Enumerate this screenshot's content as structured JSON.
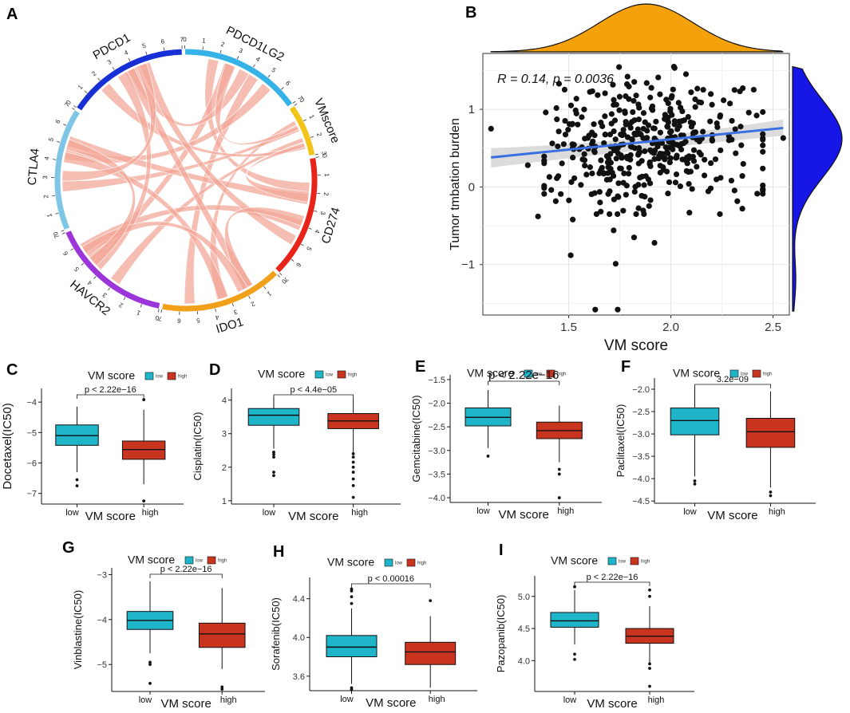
{
  "colors": {
    "low": "#1fb5c9",
    "high": "#c9341f",
    "points": "#111111",
    "fit": "#3a6fe0",
    "ci": "#d6d6d6",
    "density_top": "#f5a10b",
    "density_right": "#1616e6",
    "chord": "#f3a596",
    "grid": "#e4e4e4"
  },
  "panel_labels": {
    "A": "A",
    "B": "B",
    "C": "C",
    "D": "D",
    "E": "E",
    "F": "F",
    "G": "G",
    "H": "H",
    "I": "I"
  },
  "chart_data": [
    {
      "panel": "A",
      "type": "chord",
      "sectors": [
        {
          "name": "PDCD1LG2",
          "color": "#36b3e6",
          "max": 7
        },
        {
          "name": "VMscore",
          "color": "#f0c419",
          "max": 3
        },
        {
          "name": "CD274",
          "color": "#e8241a",
          "max": 7
        },
        {
          "name": "IDO1",
          "color": "#f0a019",
          "max": 7
        },
        {
          "name": "HAVCR2",
          "color": "#9b35d9",
          "max": 7
        },
        {
          "name": "CTLA4",
          "color": "#7fc6e6",
          "max": 7
        },
        {
          "name": "PDCD1",
          "color": "#1630d6",
          "max": 7
        }
      ],
      "links": [
        [
          0,
          2
        ],
        [
          0,
          3
        ],
        [
          0,
          4
        ],
        [
          0,
          5
        ],
        [
          0,
          6
        ],
        [
          1,
          3
        ],
        [
          1,
          4
        ],
        [
          1,
          5
        ],
        [
          1,
          6
        ],
        [
          2,
          4
        ],
        [
          2,
          5
        ],
        [
          2,
          6
        ],
        [
          3,
          5
        ],
        [
          3,
          6
        ],
        [
          4,
          6
        ],
        [
          0,
          1
        ],
        [
          1,
          2
        ],
        [
          2,
          3
        ],
        [
          3,
          4
        ],
        [
          4,
          5
        ],
        [
          5,
          6
        ]
      ]
    },
    {
      "panel": "B",
      "type": "scatter",
      "xlabel": "VM score",
      "ylabel": "Tumor tmbation burden",
      "annotation": "R = 0.14, p = 0.0036",
      "xlim": [
        1.08,
        2.58
      ],
      "ylim": [
        -1.65,
        1.72
      ],
      "xticks": [
        "1.5",
        "2.0",
        "2.5"
      ],
      "xtick_values": [
        1.5,
        2.0,
        2.5
      ],
      "yticks": [
        "1",
        "0",
        "−1"
      ],
      "ytick_values": [
        1,
        0,
        -1
      ],
      "fit": {
        "x": [
          1.12,
          2.55
        ],
        "y": [
          0.38,
          0.76
        ],
        "ci_low_end": [
          0.25,
          0.66
        ],
        "ci_high_end": [
          0.5,
          0.87
        ],
        "ci_mid": [
          0.5,
          0.55
        ]
      },
      "n_points": 400,
      "x_mean": 1.88,
      "x_sd": 0.25,
      "y_mean": 0.55,
      "y_sd": 0.42,
      "outliers": [
        [
          1.63,
          -1.58
        ],
        [
          1.74,
          -1.58
        ],
        [
          1.73,
          -0.99
        ],
        [
          1.51,
          -0.88
        ],
        [
          1.92,
          -0.72
        ],
        [
          1.82,
          -0.65
        ],
        [
          1.72,
          -0.56
        ],
        [
          1.35,
          -0.38
        ],
        [
          1.52,
          -0.42
        ],
        [
          2.35,
          -0.28
        ],
        [
          1.12,
          0.75
        ],
        [
          2.55,
          0.63
        ],
        [
          2.45,
          0.02
        ],
        [
          2.42,
          0.92
        ],
        [
          1.3,
          0.28
        ]
      ]
    },
    {
      "panel": "C",
      "type": "boxplot",
      "legend_title": "VM score",
      "legend_low": "low",
      "legend_high": "high",
      "ylabel": "Docetaxel(IC50)",
      "xlabel": "VM score",
      "categories": [
        "low",
        "high"
      ],
      "pvalue": "p < 2.22e−16",
      "ylim": [
        -7.35,
        -3.55
      ],
      "yticks": [
        -4,
        -5,
        -6,
        -7
      ],
      "ytick_labels": [
        "−4",
        "−5",
        "−6",
        "−7"
      ],
      "boxes": [
        {
          "whislo": -6.3,
          "q1": -5.42,
          "med": -5.1,
          "q3": -4.75,
          "whishi": -4.15,
          "outliers": [
            -6.55,
            -6.75
          ]
        },
        {
          "whislo": -6.7,
          "q1": -5.88,
          "med": -5.56,
          "q3": -5.28,
          "whishi": -4.25,
          "outliers": [
            -3.92,
            -7.25
          ]
        }
      ]
    },
    {
      "panel": "D",
      "type": "boxplot",
      "legend_title": "VM score",
      "legend_low": "low",
      "legend_high": "high",
      "ylabel": "Cisplatin(IC50)",
      "xlabel": "VM score",
      "categories": [
        "low",
        "high"
      ],
      "pvalue": "p < 4.4e−05",
      "ylim": [
        0.9,
        4.35
      ],
      "yticks": [
        4,
        3,
        2,
        1
      ],
      "ytick_labels": [
        "4",
        "3",
        "2",
        "1"
      ],
      "boxes": [
        {
          "whislo": 2.55,
          "q1": 3.25,
          "med": 3.55,
          "q3": 3.75,
          "whishi": 4.1,
          "outliers": [
            2.45,
            2.38,
            2.3,
            1.85,
            1.75
          ]
        },
        {
          "whislo": 2.45,
          "q1": 3.15,
          "med": 3.38,
          "q3": 3.6,
          "whishi": 4.05,
          "outliers": [
            2.4,
            2.3,
            2.15,
            2.0,
            1.85,
            1.65,
            1.45,
            1.1
          ]
        }
      ]
    },
    {
      "panel": "E",
      "type": "boxplot",
      "legend_title": "VM score",
      "legend_low": "low",
      "legend_high": "high",
      "ylabel": "Gemcitabine(IC50)",
      "xlabel": "VM score",
      "categories": [
        "low",
        "high"
      ],
      "pvalue": "p < 2.22e−16",
      "ylim": [
        -4.1,
        -1.4
      ],
      "yticks": [
        -1.5,
        -2.0,
        -2.5,
        -3.0,
        -3.5,
        -4.0
      ],
      "ytick_labels": [
        "−1.5",
        "−2.0",
        "−2.5",
        "−3.0",
        "−3.5",
        "−4.0"
      ],
      "boxes": [
        {
          "whislo": -2.95,
          "q1": -2.48,
          "med": -2.3,
          "q3": -2.1,
          "whishi": -1.72,
          "outliers": [
            -3.12
          ]
        },
        {
          "whislo": -3.25,
          "q1": -2.75,
          "med": -2.58,
          "q3": -2.4,
          "whishi": -2.05,
          "outliers": [
            -3.4,
            -3.5,
            -4.0
          ]
        }
      ]
    },
    {
      "panel": "F",
      "type": "boxplot",
      "legend_title": "VM score",
      "legend_low": "low",
      "legend_high": "high",
      "ylabel": "Paclitaxel(IC50)",
      "xlabel": "VM score",
      "categories": [
        "low",
        "high"
      ],
      "pvalue": "3.2e−09",
      "ylim": [
        -4.55,
        -1.75
      ],
      "yticks": [
        -2.0,
        -2.5,
        -3.0,
        -3.5,
        -4.0,
        -4.5
      ],
      "ytick_labels": [
        "−2.0",
        "−2.5",
        "−3.0",
        "−3.5",
        "−4.0",
        "−4.5"
      ],
      "boxes": [
        {
          "whislo": -3.95,
          "q1": -3.02,
          "med": -2.7,
          "q3": -2.42,
          "whishi": -1.95,
          "outliers": [
            -4.05,
            -4.12
          ]
        },
        {
          "whislo": -4.2,
          "q1": -3.3,
          "med": -2.95,
          "q3": -2.65,
          "whishi": -2.05,
          "outliers": [
            -4.3,
            -4.38
          ]
        }
      ]
    },
    {
      "panel": "G",
      "type": "boxplot",
      "legend_title": "VM score",
      "legend_low": "low",
      "legend_high": "high",
      "ylabel": "Vinblastine(IC50)",
      "xlabel": "VM score",
      "categories": [
        "low",
        "high"
      ],
      "pvalue": "p < 2.22e−16",
      "ylim": [
        -5.6,
        -2.85
      ],
      "yticks": [
        -3,
        -4,
        -5
      ],
      "ytick_labels": [
        "−3",
        "−4",
        "−5"
      ],
      "boxes": [
        {
          "whislo": -4.75,
          "q1": -4.22,
          "med": -4.02,
          "q3": -3.82,
          "whishi": -3.15,
          "outliers": [
            -4.95,
            -5.0,
            -5.42
          ]
        },
        {
          "whislo": -5.1,
          "q1": -4.62,
          "med": -4.32,
          "q3": -4.08,
          "whishi": -3.3,
          "outliers": [
            -5.5,
            -5.55
          ]
        }
      ]
    },
    {
      "panel": "H",
      "type": "boxplot",
      "legend_title": "VM score",
      "legend_low": "low",
      "legend_high": "high",
      "ylabel": "Sorafenib(IC50)",
      "xlabel": "VM score",
      "categories": [
        "low",
        "high"
      ],
      "pvalue": "p < 0.00016",
      "ylim": [
        3.45,
        4.62
      ],
      "yticks": [
        4.4,
        4.0,
        3.6
      ],
      "ytick_labels": [
        "4.4",
        "4.0",
        "3.6"
      ],
      "boxes": [
        {
          "whislo": 3.52,
          "q1": 3.8,
          "med": 3.9,
          "q3": 4.02,
          "whishi": 4.3,
          "outliers": [
            4.5,
            4.48,
            4.42,
            4.35,
            3.48,
            3.46
          ]
        },
        {
          "whislo": 3.48,
          "q1": 3.72,
          "med": 3.85,
          "q3": 3.95,
          "whishi": 4.22,
          "outliers": [
            4.38
          ]
        }
      ]
    },
    {
      "panel": "I",
      "type": "boxplot",
      "legend_title": "VM score",
      "legend_low": "low",
      "legend_high": "high",
      "ylabel": "Pazopanib(IC50)",
      "xlabel": "VM score",
      "categories": [
        "low",
        "high"
      ],
      "pvalue": "p < 2.22e−16",
      "ylim": [
        3.52,
        5.32
      ],
      "yticks": [
        5.0,
        4.5,
        4.0
      ],
      "ytick_labels": [
        "5.0",
        "4.5",
        "4.0"
      ],
      "boxes": [
        {
          "whislo": 4.25,
          "q1": 4.52,
          "med": 4.62,
          "q3": 4.75,
          "whishi": 5.1,
          "outliers": [
            5.15,
            4.1,
            4.02
          ]
        },
        {
          "whislo": 3.95,
          "q1": 4.27,
          "med": 4.38,
          "q3": 4.5,
          "whishi": 4.85,
          "outliers": [
            5.1,
            5.0,
            3.95,
            3.88,
            3.6
          ]
        }
      ]
    }
  ]
}
